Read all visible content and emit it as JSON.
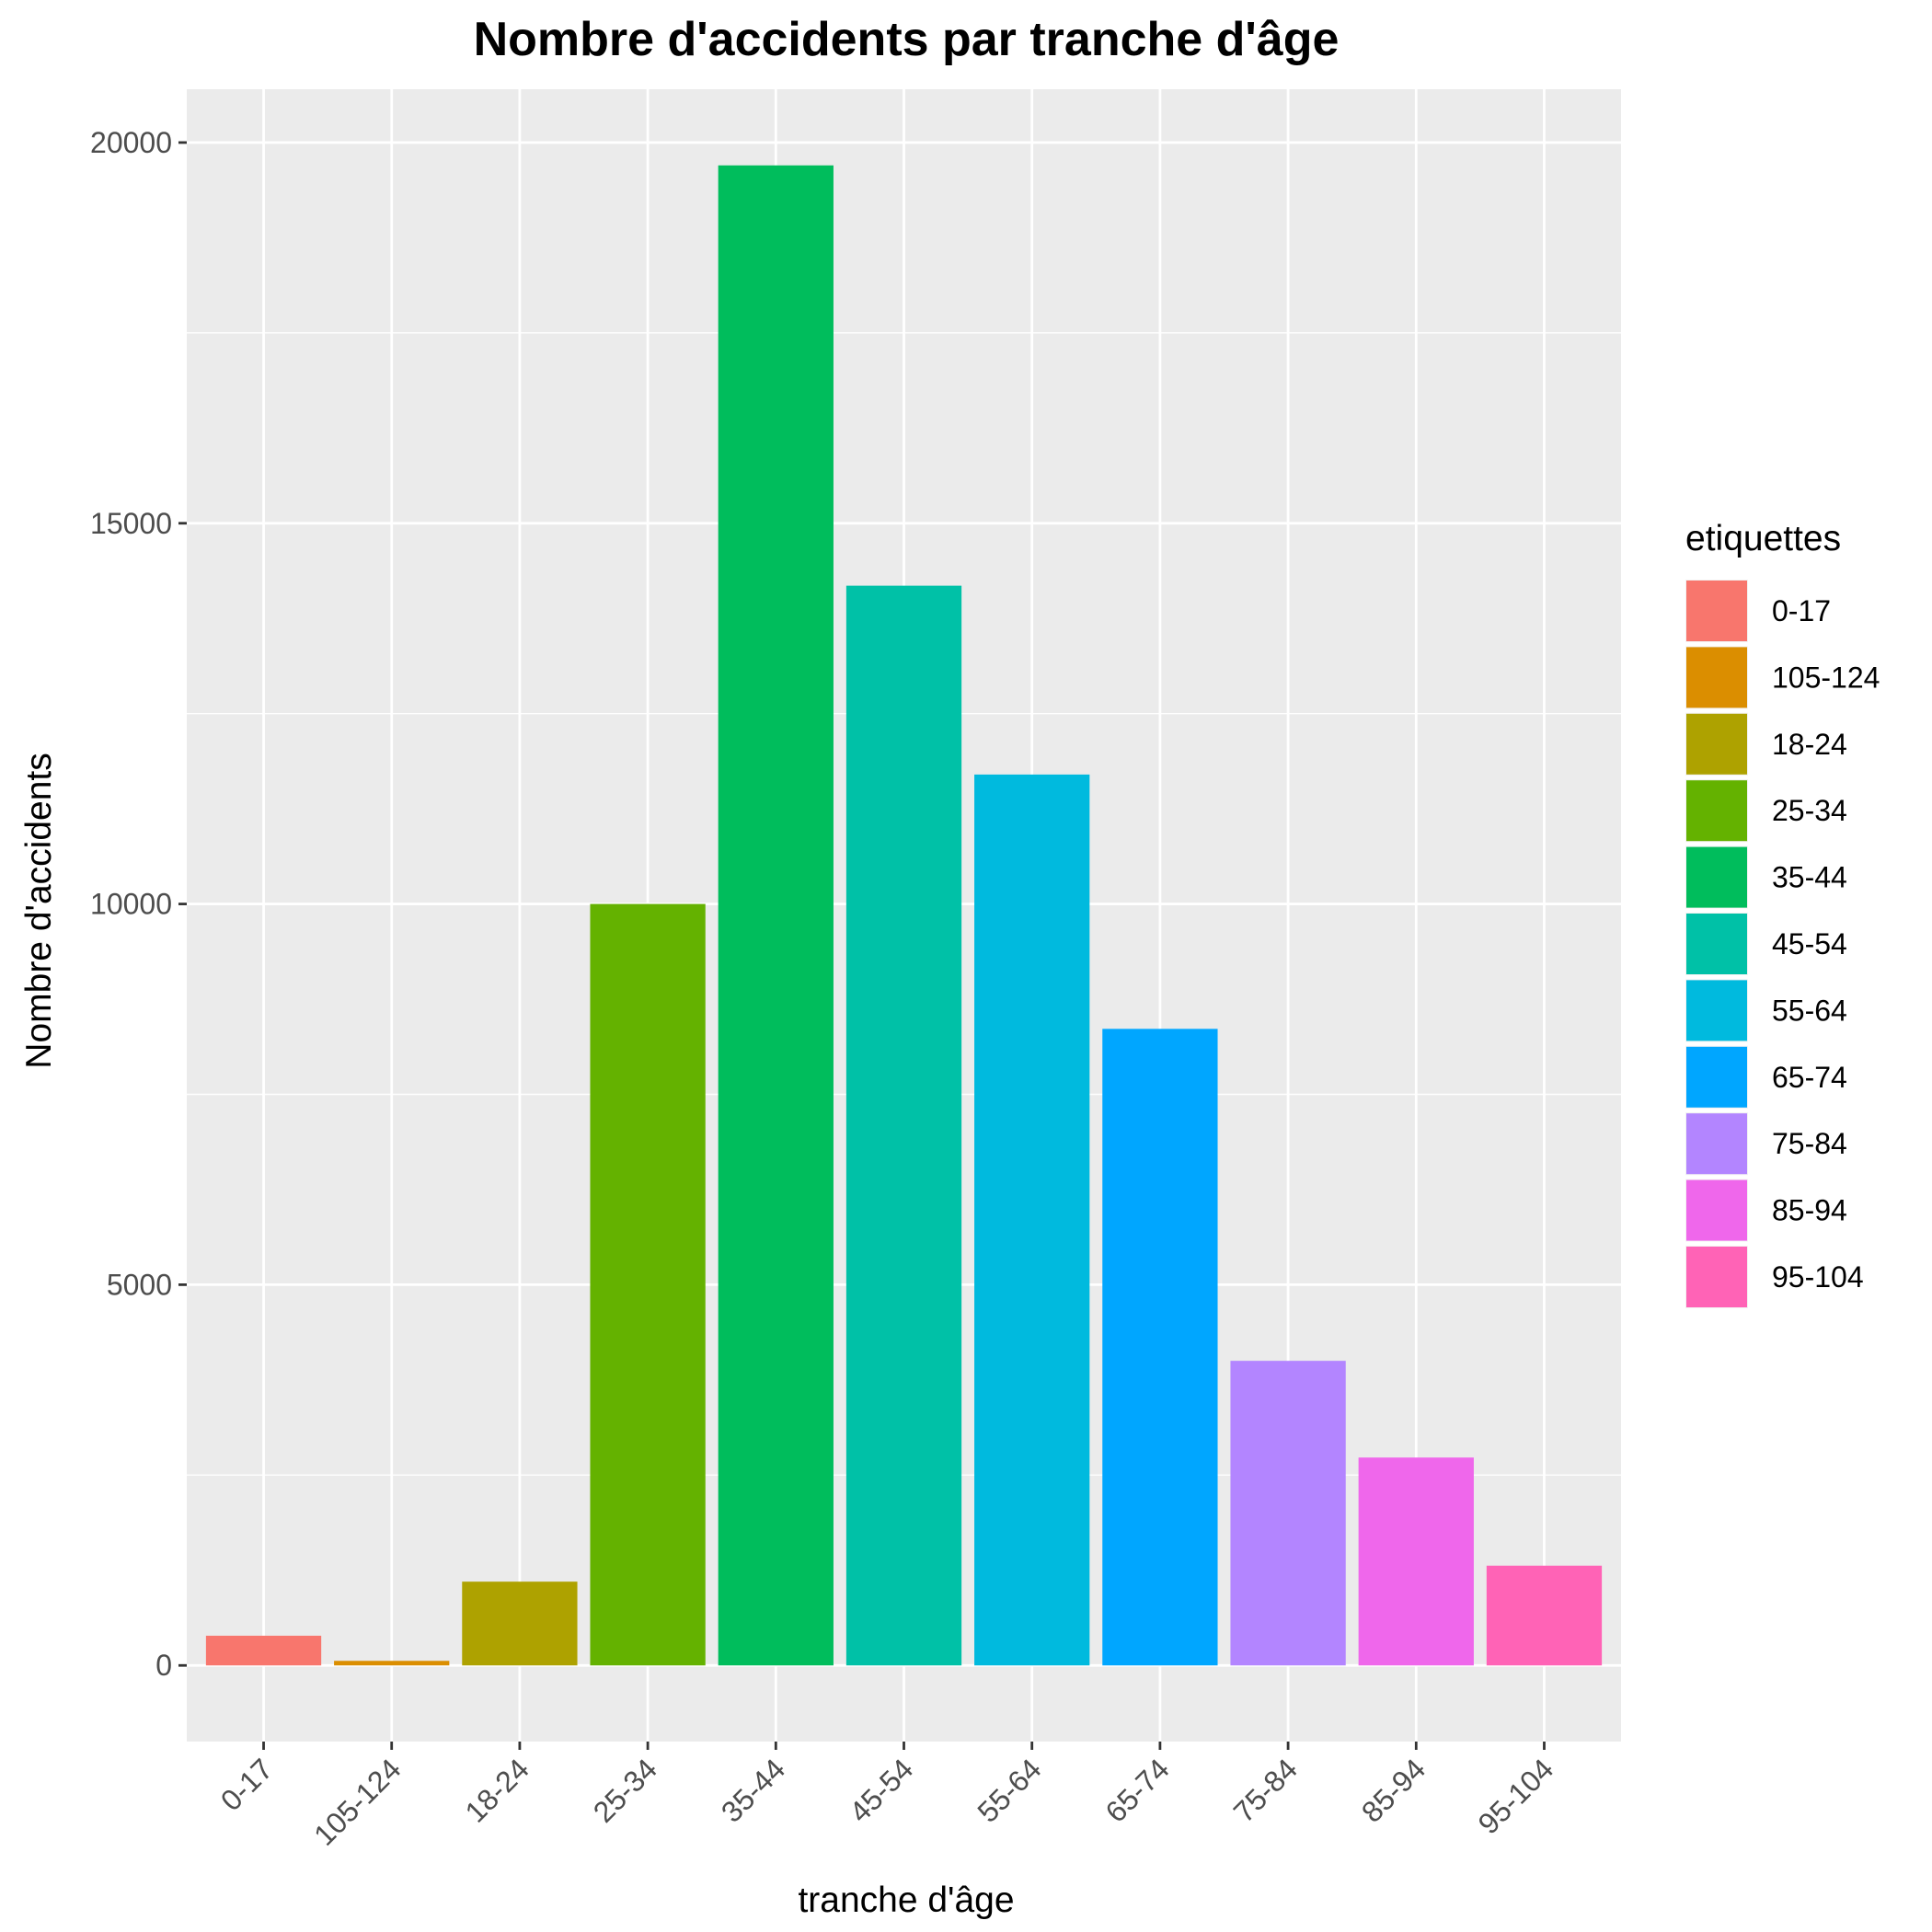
{
  "chart_data": {
    "type": "bar",
    "title": "Nombre d'accidents par tranche d'âge",
    "xlabel": "tranche d'âge",
    "ylabel": "Nombre d'accidents",
    "categories": [
      "0-17",
      "105-124",
      "18-24",
      "25-34",
      "35-44",
      "45-54",
      "55-64",
      "65-74",
      "75-84",
      "85-94",
      "95-104"
    ],
    "values": [
      390,
      60,
      1100,
      10000,
      19700,
      14180,
      11700,
      8360,
      4000,
      2730,
      1310
    ],
    "colors": [
      "#F8766D",
      "#DB8E00",
      "#AEA200",
      "#64B200",
      "#00BD5C",
      "#00C1A7",
      "#00BADE",
      "#00A6FF",
      "#B385FF",
      "#EF67EB",
      "#FF63B6"
    ],
    "ylim": [
      -1000,
      20700
    ],
    "yticks": [
      0,
      5000,
      10000,
      15000,
      20000
    ],
    "ytick_labels": [
      "0",
      "5000",
      "10000",
      "15000",
      "20000"
    ],
    "grid": true,
    "background": "#EBEBEB",
    "legend": {
      "title": "etiquettes",
      "placement": "right",
      "entries": [
        "0-17",
        "105-124",
        "18-24",
        "25-34",
        "35-44",
        "45-54",
        "55-64",
        "65-74",
        "75-84",
        "85-94",
        "95-104"
      ]
    }
  }
}
